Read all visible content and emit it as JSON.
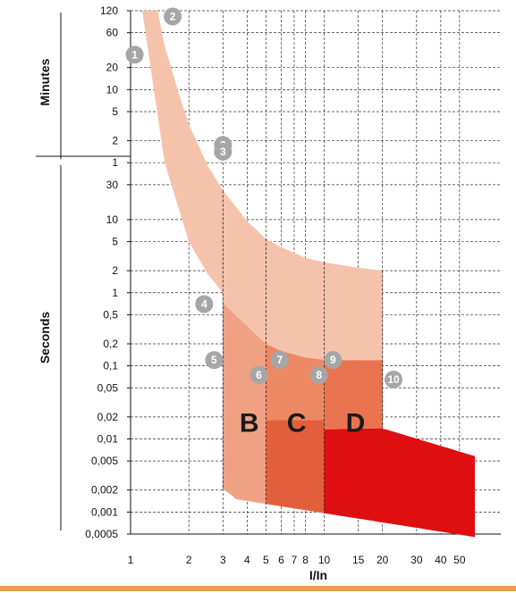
{
  "chart_data": {
    "type": "area",
    "title": "",
    "xlabel": "I/In",
    "xscale": "log",
    "yscale": "log",
    "xlim": [
      1,
      60
    ],
    "ylim": [
      "0,0005 s",
      "120 min"
    ],
    "grid": true,
    "y_sections": [
      {
        "name": "Minutes",
        "ticks": [
          "120",
          "60",
          "20",
          "10",
          "5",
          "2",
          "1"
        ]
      },
      {
        "name": "Seconds",
        "ticks": [
          "30",
          "10",
          "5",
          "2",
          "1",
          "0,5",
          "0,2",
          "0,1",
          "0,05",
          "0,02",
          "0,01",
          "0,005",
          "0,002",
          "0,001",
          "0,0005"
        ]
      }
    ],
    "x_ticks": [
      "1",
      "2",
      "3",
      "4",
      "5",
      "6",
      "7",
      "8",
      "10",
      "15",
      "20",
      "30",
      "40",
      "50"
    ],
    "series": [
      {
        "name": "",
        "x": [
          1.38,
          1.5,
          1.75,
          2,
          2.5,
          3,
          4,
          5,
          6,
          8,
          10,
          15,
          20
        ],
        "y_seconds": [
          7200,
          2400,
          600,
          200,
          55,
          25,
          9.5,
          5.5,
          4.2,
          3.0,
          2.6,
          2.2,
          2.0
        ]
      },
      {
        "name": "",
        "x": [
          1.15,
          1.5,
          2,
          2.5,
          3
        ],
        "y_seconds": [
          7200,
          60,
          5,
          1.8,
          1.0
        ]
      },
      {
        "name": "",
        "x": [
          3,
          4,
          5,
          6,
          8,
          10,
          15,
          20
        ],
        "y_seconds": [
          0.72,
          0.35,
          0.2,
          0.16,
          0.13,
          0.12,
          0.12,
          0.12
        ]
      }
    ],
    "zones": [
      {
        "label": "B",
        "from": 3,
        "to": 5,
        "color": "#f0a184"
      },
      {
        "label": "C",
        "from": 5,
        "to": 10,
        "color": "#e35f3c"
      },
      {
        "label": "D",
        "from": 10,
        "to": 20,
        "color": "#df0e10"
      }
    ],
    "markers": [
      "1",
      "2",
      "3",
      "3",
      "4",
      "5",
      "6",
      "7",
      "8",
      "9",
      "10"
    ]
  }
}
